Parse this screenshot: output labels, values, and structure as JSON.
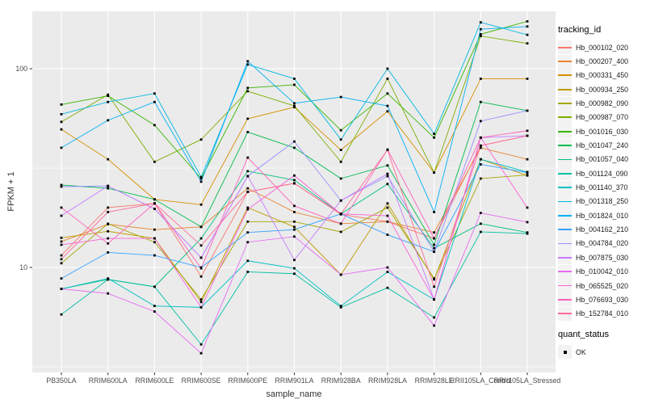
{
  "chart_data": {
    "type": "line",
    "title": "",
    "xlabel": "sample_name",
    "ylabel": "FPKM + 1",
    "y_scale": "log10",
    "ylim": [
      2.96,
      194
    ],
    "y_ticks": [
      {
        "value": 10,
        "label": "10"
      },
      {
        "value": 100,
        "label": "100"
      }
    ],
    "y_minor_ticks": [
      3.16,
      31.6
    ],
    "grid": "major-and-minor",
    "legend_position": "right",
    "categories": [
      "PB350LA",
      "RRIM600LA",
      "RRIM600LE",
      "RRIM600SE",
      "RRIM600PE",
      "RRIM901LA",
      "RRIM928BA",
      "RRIM928LA",
      "RRIM928LE",
      "RRII105LA_Control",
      "RRII105LA_Stressed"
    ],
    "series": [
      {
        "name": "Hb_000102_020",
        "color": "#F8766D",
        "values": [
          11.5,
          20,
          21,
          9,
          24,
          26.5,
          18.5,
          17,
          14,
          41,
          46
        ]
      },
      {
        "name": "Hb_000207_400",
        "color": "#EA8331",
        "values": [
          13.5,
          16.5,
          15.5,
          16,
          25,
          19,
          16.6,
          17,
          15,
          40,
          35
        ]
      },
      {
        "name": "Hb_000331_450",
        "color": "#D89000",
        "values": [
          49.5,
          35,
          22,
          20.7,
          56,
          64,
          39,
          61,
          30,
          89,
          89
        ]
      },
      {
        "name": "Hb_000934_250",
        "color": "#C09B00",
        "values": [
          14.1,
          15.2,
          14,
          6.7,
          20,
          16,
          9.2,
          21,
          8.7,
          35,
          29
        ]
      },
      {
        "name": "Hb_000982_090",
        "color": "#A3A500",
        "values": [
          10.5,
          16.6,
          13.4,
          6.9,
          17,
          17,
          15.1,
          20,
          8.8,
          28,
          29.2
        ]
      },
      {
        "name": "Hb_000987_070",
        "color": "#7CAE00",
        "values": [
          54,
          74,
          34,
          44,
          77,
          65,
          34,
          89,
          30,
          146,
          134
        ]
      },
      {
        "name": "Hb_001016_030",
        "color": "#39B600",
        "values": [
          66,
          73,
          52,
          28,
          80,
          83,
          49,
          75,
          45,
          149,
          173
        ]
      },
      {
        "name": "Hb_001047_240",
        "color": "#00BB4E",
        "values": [
          26,
          25,
          22,
          16,
          48,
          40,
          28,
          32.6,
          13,
          68,
          61.5
        ]
      },
      {
        "name": "Hb_001057_040",
        "color": "#00BF7D",
        "values": [
          7.8,
          8.7,
          8,
          14,
          30.5,
          27.5,
          18.6,
          26.3,
          12.5,
          16.6,
          15
        ]
      },
      {
        "name": "Hb_001124_090",
        "color": "#00C1A3",
        "values": [
          5.8,
          8.7,
          8,
          4.1,
          9.5,
          9.3,
          6.3,
          7.9,
          5.6,
          15.1,
          14.8
        ]
      },
      {
        "name": "Hb_001140_370",
        "color": "#00BFC4",
        "values": [
          7.8,
          8.8,
          6.4,
          6.3,
          10.8,
          9.9,
          6.4,
          9.5,
          6.9,
          35,
          30.2
        ]
      },
      {
        "name": "Hb_001318_250",
        "color": "#00BAE0",
        "values": [
          59,
          68,
          75,
          28.5,
          105,
          89,
          44,
          100,
          47,
          171,
          148
        ]
      },
      {
        "name": "Hb_001824_010",
        "color": "#00B0F6",
        "values": [
          40,
          55,
          68,
          27,
          109,
          67,
          72,
          65,
          19,
          158,
          163
        ]
      },
      {
        "name": "Hb_004162_210",
        "color": "#35A2FF",
        "values": [
          8.8,
          11.9,
          11.5,
          10,
          15,
          15.5,
          18.6,
          14.6,
          12,
          33,
          30
        ]
      },
      {
        "name": "Hb_004784_020",
        "color": "#9590FF",
        "values": [
          25.5,
          25.7,
          19.7,
          11.2,
          28.8,
          43,
          21.7,
          28.8,
          12,
          54.5,
          61.5
        ]
      },
      {
        "name": "Hb_007875_030",
        "color": "#C77CFF",
        "values": [
          18.2,
          25.7,
          19.7,
          11.2,
          28.8,
          10.9,
          21.7,
          29.6,
          6.9,
          45,
          46
        ]
      },
      {
        "name": "Hb_010042_010",
        "color": "#E76BF3",
        "values": [
          7.8,
          7.4,
          6,
          3.7,
          13.4,
          14.3,
          9.2,
          10,
          5.1,
          18.8,
          16.9
        ]
      },
      {
        "name": "Hb_065525_020",
        "color": "#FA62DB",
        "values": [
          13,
          14,
          14,
          6.3,
          19.6,
          29,
          18.6,
          18.2,
          6.9,
          45,
          20
        ]
      },
      {
        "name": "Hb_076693_030",
        "color": "#FF62BC",
        "values": [
          20,
          13.2,
          21,
          9.9,
          35.7,
          20.4,
          16.6,
          39.2,
          14,
          45,
          48.7
        ]
      },
      {
        "name": "Hb_152784_010",
        "color": "#FF6A98",
        "values": [
          11,
          19,
          21,
          12.9,
          24,
          26.5,
          18.6,
          39,
          8,
          41,
          46
        ]
      }
    ],
    "points": {
      "shape": "filled-square",
      "color": "#000000"
    },
    "legend": {
      "color_title": "tracking_id",
      "shape_title": "quant_status",
      "shape_entries": [
        {
          "label": "OK"
        }
      ]
    },
    "style": {
      "panel_bg": "#EBEBEB",
      "grid_color": "#FFFFFF",
      "tick_label_color": "#4D4D4D",
      "tick_mark_color": "#333333",
      "axis_title_color": "#333333"
    }
  }
}
